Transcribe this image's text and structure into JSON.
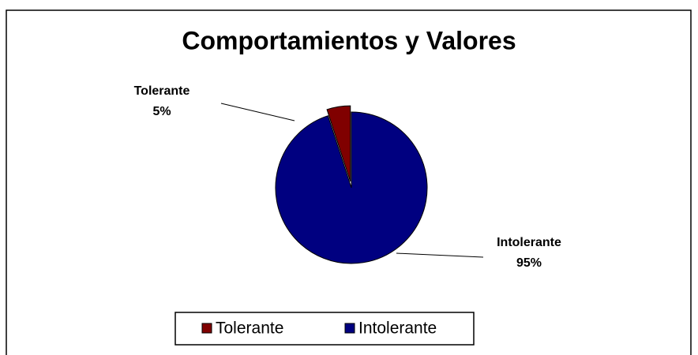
{
  "chart_data": {
    "type": "pie",
    "title": "Comportamientos y Valores",
    "categories": [
      "Tolerante",
      "Intolerante"
    ],
    "values": [
      5,
      95
    ],
    "value_labels": [
      "5%",
      "95%"
    ],
    "colors": [
      "#800000",
      "#000080"
    ],
    "legend": "bottom"
  }
}
